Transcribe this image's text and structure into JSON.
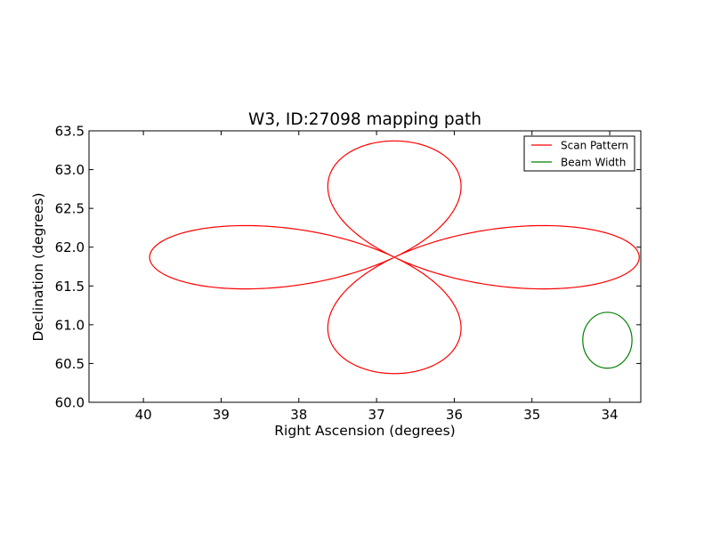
{
  "chart_data": {
    "type": "line",
    "title": "W3, ID:27098 mapping path",
    "xlabel": "Right Ascension (degrees)",
    "ylabel": "Declination (degrees)",
    "xlim": [
      40.7,
      33.6
    ],
    "ylim": [
      60.0,
      63.5
    ],
    "x_reversed": true,
    "x_ticks": [
      40,
      39,
      38,
      37,
      36,
      35,
      34
    ],
    "y_ticks": [
      60.0,
      60.5,
      61.0,
      61.5,
      62.0,
      62.5,
      63.0,
      63.5
    ],
    "x_tick_labels": [
      "40",
      "39",
      "38",
      "37",
      "36",
      "35",
      "34"
    ],
    "y_tick_labels": [
      "60.0",
      "60.5",
      "61.0",
      "61.5",
      "62.0",
      "62.5",
      "63.0",
      "63.5"
    ],
    "grid": false,
    "legend_position": "top-right",
    "series": [
      {
        "name": "Scan Pattern",
        "color": "#ff0000",
        "shape": "four-lobed rosette",
        "center": [
          36.77,
          61.87
        ],
        "lobe_extent_ra": 3.15,
        "lobe_extent_dec": 1.5,
        "lobe_half_width_ra": 0.87,
        "lobe_half_width_dec": 0.41
      },
      {
        "name": "Beam Width",
        "color": "#008000",
        "shape": "circle",
        "center": [
          34.03,
          60.8
        ],
        "radius_deg": 0.36
      }
    ]
  }
}
